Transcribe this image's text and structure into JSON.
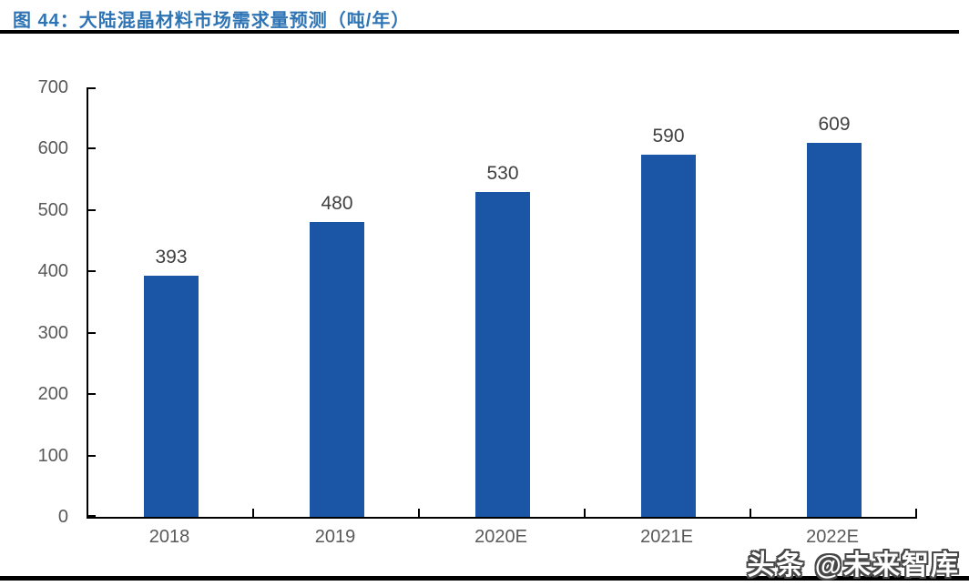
{
  "header": {
    "title": "图 44：大陆混晶材料市场需求量预测（吨/年）"
  },
  "watermark": {
    "text": "头条 @未来智库"
  },
  "chart_data": {
    "type": "bar",
    "title": "大陆混晶材料市场需求量预测（吨/年）",
    "categories": [
      "2018",
      "2019",
      "2020E",
      "2021E",
      "2022E"
    ],
    "values": [
      393,
      480,
      530,
      590,
      609
    ],
    "xlabel": "",
    "ylabel": "",
    "ylim": [
      0,
      700
    ],
    "yticks": [
      0,
      100,
      200,
      300,
      400,
      500,
      600,
      700
    ],
    "grid": false,
    "legend_position": "none",
    "colors": {
      "bar": "#1B55A6",
      "axis_line": "#000000",
      "axis_label": "#595959",
      "value_label": "#404040",
      "title": "#2E74B5"
    }
  }
}
